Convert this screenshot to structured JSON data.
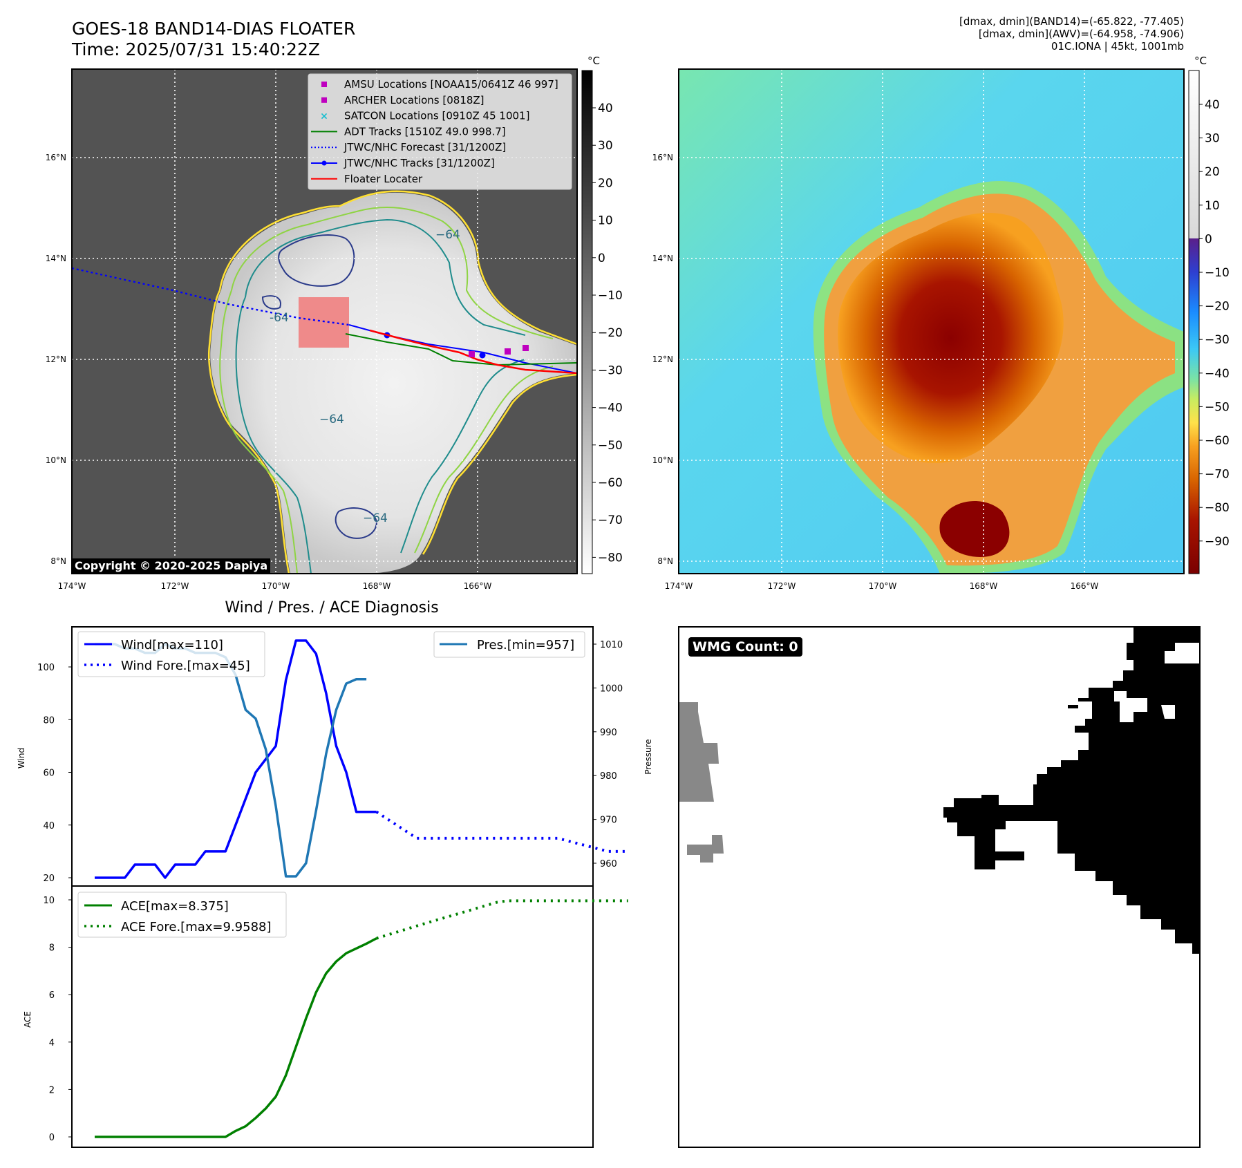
{
  "header": {
    "title_line1": "GOES-18 BAND14-DIAS FLOATER",
    "title_line2": "Time: 2025/07/31 15:40:22Z",
    "meta_line1": "[dmax, dmin](BAND14)=(-65.822, -77.405)",
    "meta_line2": "[dmax, dmin](AWV)=(-64.958, -74.906)",
    "meta_line3": "01C.IONA | 45kt, 1001mb"
  },
  "copyright": "Copyright © 2020-2025 Dapiya",
  "colorbar_unit": "°C",
  "map": {
    "lon_ticks": [
      "174°W",
      "172°W",
      "170°W",
      "168°W",
      "166°W"
    ],
    "lat_ticks": [
      "16°N",
      "14°N",
      "12°N",
      "10°N",
      "8°N"
    ],
    "contour_labels": [
      "−64",
      "−64",
      "−64",
      "−64",
      "-64"
    ],
    "colors": {
      "ir_cloud": "#eeeeee",
      "ir_clear": "#5a5a5a",
      "contour_yellow": "#ffe033",
      "contour_green": "#8fd444",
      "contour_teal": "#1f8c8c",
      "contour_navy": "#2a3a8a",
      "floater_box": "#f08080"
    }
  },
  "legend_left": {
    "items": [
      {
        "label": "AMSU Locations [NOAA15/0641Z 46 997]",
        "color": "#bf00bf",
        "marker": "square"
      },
      {
        "label": "ARCHER Locations [0818Z]",
        "color": "#bf00bf",
        "marker": "square"
      },
      {
        "label": "SATCON Locations [0910Z 45 1001]",
        "color": "#17becf",
        "marker": "x"
      },
      {
        "label": "ADT Tracks [1510Z 49.0 998.7]",
        "color": "#008000",
        "marker": "line"
      },
      {
        "label": "JTWC/NHC Forecast [31/1200Z]",
        "color": "#0000ff",
        "marker": "dotted"
      },
      {
        "label": "JTWC/NHC Tracks [31/1200Z]",
        "color": "#0000ff",
        "marker": "line-dot"
      },
      {
        "label": "Floater Locater",
        "color": "#ff0000",
        "marker": "line"
      }
    ]
  },
  "colorbar_ir": {
    "ticks": [
      "40",
      "30",
      "20",
      "10",
      "0",
      "−10",
      "−20",
      "−30",
      "−40",
      "−50",
      "−60",
      "−70",
      "−80"
    ]
  },
  "colorbar_awv": {
    "ticks": [
      "40",
      "30",
      "20",
      "10",
      "0",
      "−10",
      "−20",
      "−30",
      "−40",
      "−50",
      "−60",
      "−70",
      "−80",
      "−90"
    ]
  },
  "chart_data": [
    {
      "type": "line",
      "title": "Wind / Pres. / ACE Diagnosis",
      "ylabel": "Wind",
      "ylim": [
        18,
        115
      ],
      "y_ticks": [
        "100",
        "80",
        "60",
        "40",
        "20"
      ],
      "legend": [
        "Wind[max=110]",
        "Wind Fore.[max=45]"
      ],
      "series": [
        {
          "name": "Wind[max=110]",
          "color": "#0000ff",
          "style": "solid",
          "values": [
            20,
            20,
            20,
            20,
            25,
            25,
            25,
            20,
            25,
            25,
            25,
            30,
            30,
            30,
            40,
            50,
            60,
            65,
            70,
            95,
            110,
            110,
            105,
            90,
            70,
            60,
            45,
            45,
            45
          ]
        },
        {
          "name": "Wind Fore.[max=45]",
          "color": "#0000ff",
          "style": "dotted",
          "x": [
            28,
            32,
            40,
            46,
            49,
            51,
            53
          ],
          "values": [
            45,
            35,
            35,
            35,
            32,
            30,
            30
          ]
        }
      ]
    },
    {
      "type": "line",
      "ylabel": "Pressure",
      "ylim": [
        956,
        1012
      ],
      "y_ticks": [
        "1010",
        "1000",
        "990",
        "980",
        "970",
        "960"
      ],
      "legend": [
        "Pres.[min=957]"
      ],
      "series": [
        {
          "name": "Pres.[min=957]",
          "color": "#1f77b4",
          "style": "solid",
          "values": [
            1010,
            1010,
            1010,
            1009,
            1009,
            1008,
            1008,
            1010,
            1009,
            1009,
            1008,
            1008,
            1008,
            1007,
            1003,
            995,
            993,
            986,
            973,
            957,
            957,
            960,
            972,
            985,
            995,
            1001,
            1002,
            1002
          ]
        }
      ]
    },
    {
      "type": "line",
      "ylabel": "ACE",
      "ylim": [
        -0.5,
        10.5
      ],
      "y_ticks": [
        "10",
        "8",
        "6",
        "4",
        "2",
        "0"
      ],
      "legend": [
        "ACE[max=8.375]",
        "ACE Fore.[max=9.9588]"
      ],
      "series": [
        {
          "name": "ACE[max=8.375]",
          "color": "#008000",
          "style": "solid",
          "values": [
            0,
            0,
            0,
            0,
            0,
            0,
            0,
            0,
            0,
            0,
            0,
            0,
            0,
            0,
            0.25,
            0.45,
            0.8,
            1.2,
            1.7,
            2.6,
            3.8,
            5.0,
            6.1,
            6.9,
            7.4,
            7.75,
            7.95,
            8.15,
            8.375
          ]
        },
        {
          "name": "ACE Fore.[max=9.9588]",
          "color": "#008000",
          "style": "dotted",
          "x": [
            28,
            32,
            36,
            40,
            41,
            46,
            50,
            53
          ],
          "values": [
            8.375,
            8.9,
            9.4,
            9.9,
            9.96,
            9.96,
            9.96,
            9.96
          ]
        }
      ]
    }
  ],
  "wmg": {
    "label": "WMG Count: 0"
  }
}
